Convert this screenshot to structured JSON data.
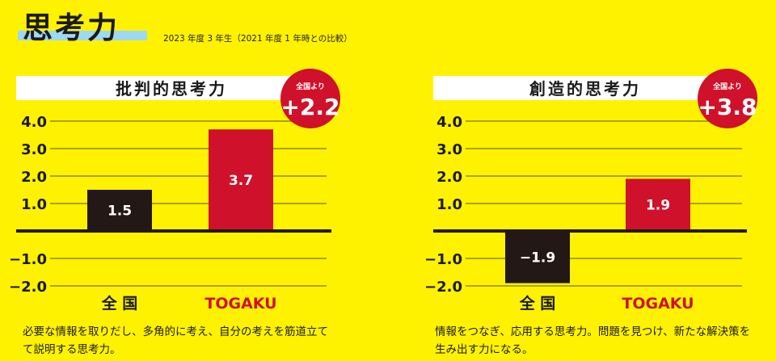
{
  "header": {
    "title": "思考力",
    "subtitle": "2023 年度 3 年生（2021 年度 1 年時との比較）"
  },
  "colors": {
    "background": "#fff200",
    "zenkoku_bar": "#231815",
    "togaku_bar": "#d0112b",
    "badge": "#d0112b",
    "baseline": "#231815"
  },
  "chart_data": [
    {
      "type": "bar",
      "title": "批判的思考力",
      "categories": [
        "全 国",
        "TOGAKU"
      ],
      "values": [
        1.5,
        3.7
      ],
      "value_labels": [
        "1.5",
        "3.7"
      ],
      "ylim": [
        -2.0,
        4.0
      ],
      "yticks": [
        "4.0",
        "3.0",
        "2.0",
        "1.0",
        "−1.0",
        "−2.0"
      ],
      "ytick_values": [
        4,
        3,
        2,
        1,
        -1,
        -2
      ],
      "grid": true,
      "badge": {
        "caption": "全国より",
        "value": "+2.2"
      },
      "description": "必要な情報を取りだし、多角的に考え、自分の考えを筋道立てて説明する思考力。"
    },
    {
      "type": "bar",
      "title": "創造的思考力",
      "categories": [
        "全 国",
        "TOGAKU"
      ],
      "values": [
        -1.9,
        1.9
      ],
      "value_labels": [
        "−1.9",
        "1.9"
      ],
      "ylim": [
        -2.0,
        4.0
      ],
      "yticks": [
        "4.0",
        "3.0",
        "2.0",
        "1.0",
        "−1.0",
        "−2.0"
      ],
      "ytick_values": [
        4,
        3,
        2,
        1,
        -1,
        -2
      ],
      "grid": true,
      "badge": {
        "caption": "全国より",
        "value": "+3.8"
      },
      "description": "情報をつなぎ、応用する思考力。問題を見つけ、新たな解決策を生み出す力になる。"
    }
  ]
}
